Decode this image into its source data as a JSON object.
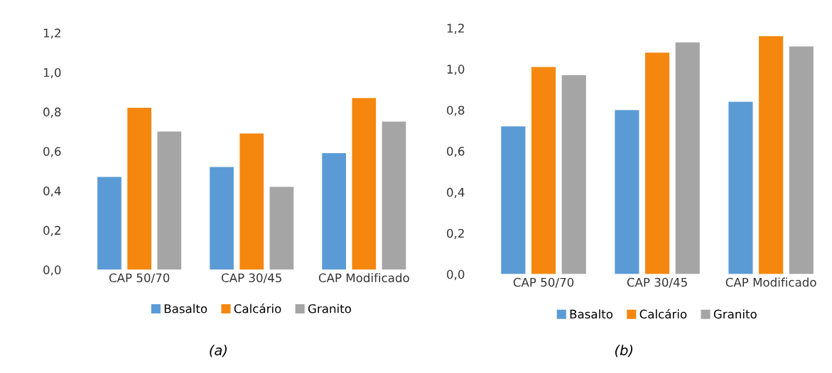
{
  "chart_data": [
    {
      "type": "bar",
      "categories": [
        "CAP 50/70",
        "CAP 30/45",
        "CAP Modificado"
      ],
      "series": [
        {
          "name": "Basalto",
          "color": "#5b9bd5",
          "values": [
            0.47,
            0.52,
            0.59
          ]
        },
        {
          "name": "Calcário",
          "color": "#f5870f",
          "values": [
            0.82,
            0.69,
            0.87
          ]
        },
        {
          "name": "Granito",
          "color": "#a5a5a5",
          "values": [
            0.7,
            0.42,
            0.75
          ]
        }
      ],
      "ylim": [
        0,
        1.2
      ],
      "yticks": [
        {
          "value": 0,
          "label": "0,0"
        },
        {
          "value": 0.2,
          "label": "0,2"
        },
        {
          "value": 0.4,
          "label": "0,4"
        },
        {
          "value": 0.6,
          "label": "0,6"
        },
        {
          "value": 0.8,
          "label": "0,8"
        },
        {
          "value": 1.0,
          "label": "1,0"
        },
        {
          "value": 1.2,
          "label": "1,2"
        }
      ],
      "grid": false,
      "legend": "bottom",
      "annotations": [
        "(a)"
      ]
    },
    {
      "type": "bar",
      "categories": [
        "CAP 50/70",
        "CAP 30/45",
        "CAP Modificado"
      ],
      "series": [
        {
          "name": "Basalto",
          "color": "#5b9bd5",
          "values": [
            0.72,
            0.8,
            0.84
          ]
        },
        {
          "name": "Calcário",
          "color": "#f5870f",
          "values": [
            1.01,
            1.08,
            1.16
          ]
        },
        {
          "name": "Granito",
          "color": "#a5a5a5",
          "values": [
            0.97,
            1.13,
            1.11
          ]
        }
      ],
      "ylim": [
        0,
        1.2
      ],
      "yticks": [
        {
          "value": 0,
          "label": "0,0"
        },
        {
          "value": 0.2,
          "label": "0,2"
        },
        {
          "value": 0.4,
          "label": "0,4"
        },
        {
          "value": 0.6,
          "label": "0,6"
        },
        {
          "value": 0.8,
          "label": "0,8"
        },
        {
          "value": 1.0,
          "label": "1,0"
        },
        {
          "value": 1.2,
          "label": "1,2"
        }
      ],
      "grid": false,
      "legend": "bottom",
      "annotations": [
        "(b)"
      ]
    }
  ]
}
